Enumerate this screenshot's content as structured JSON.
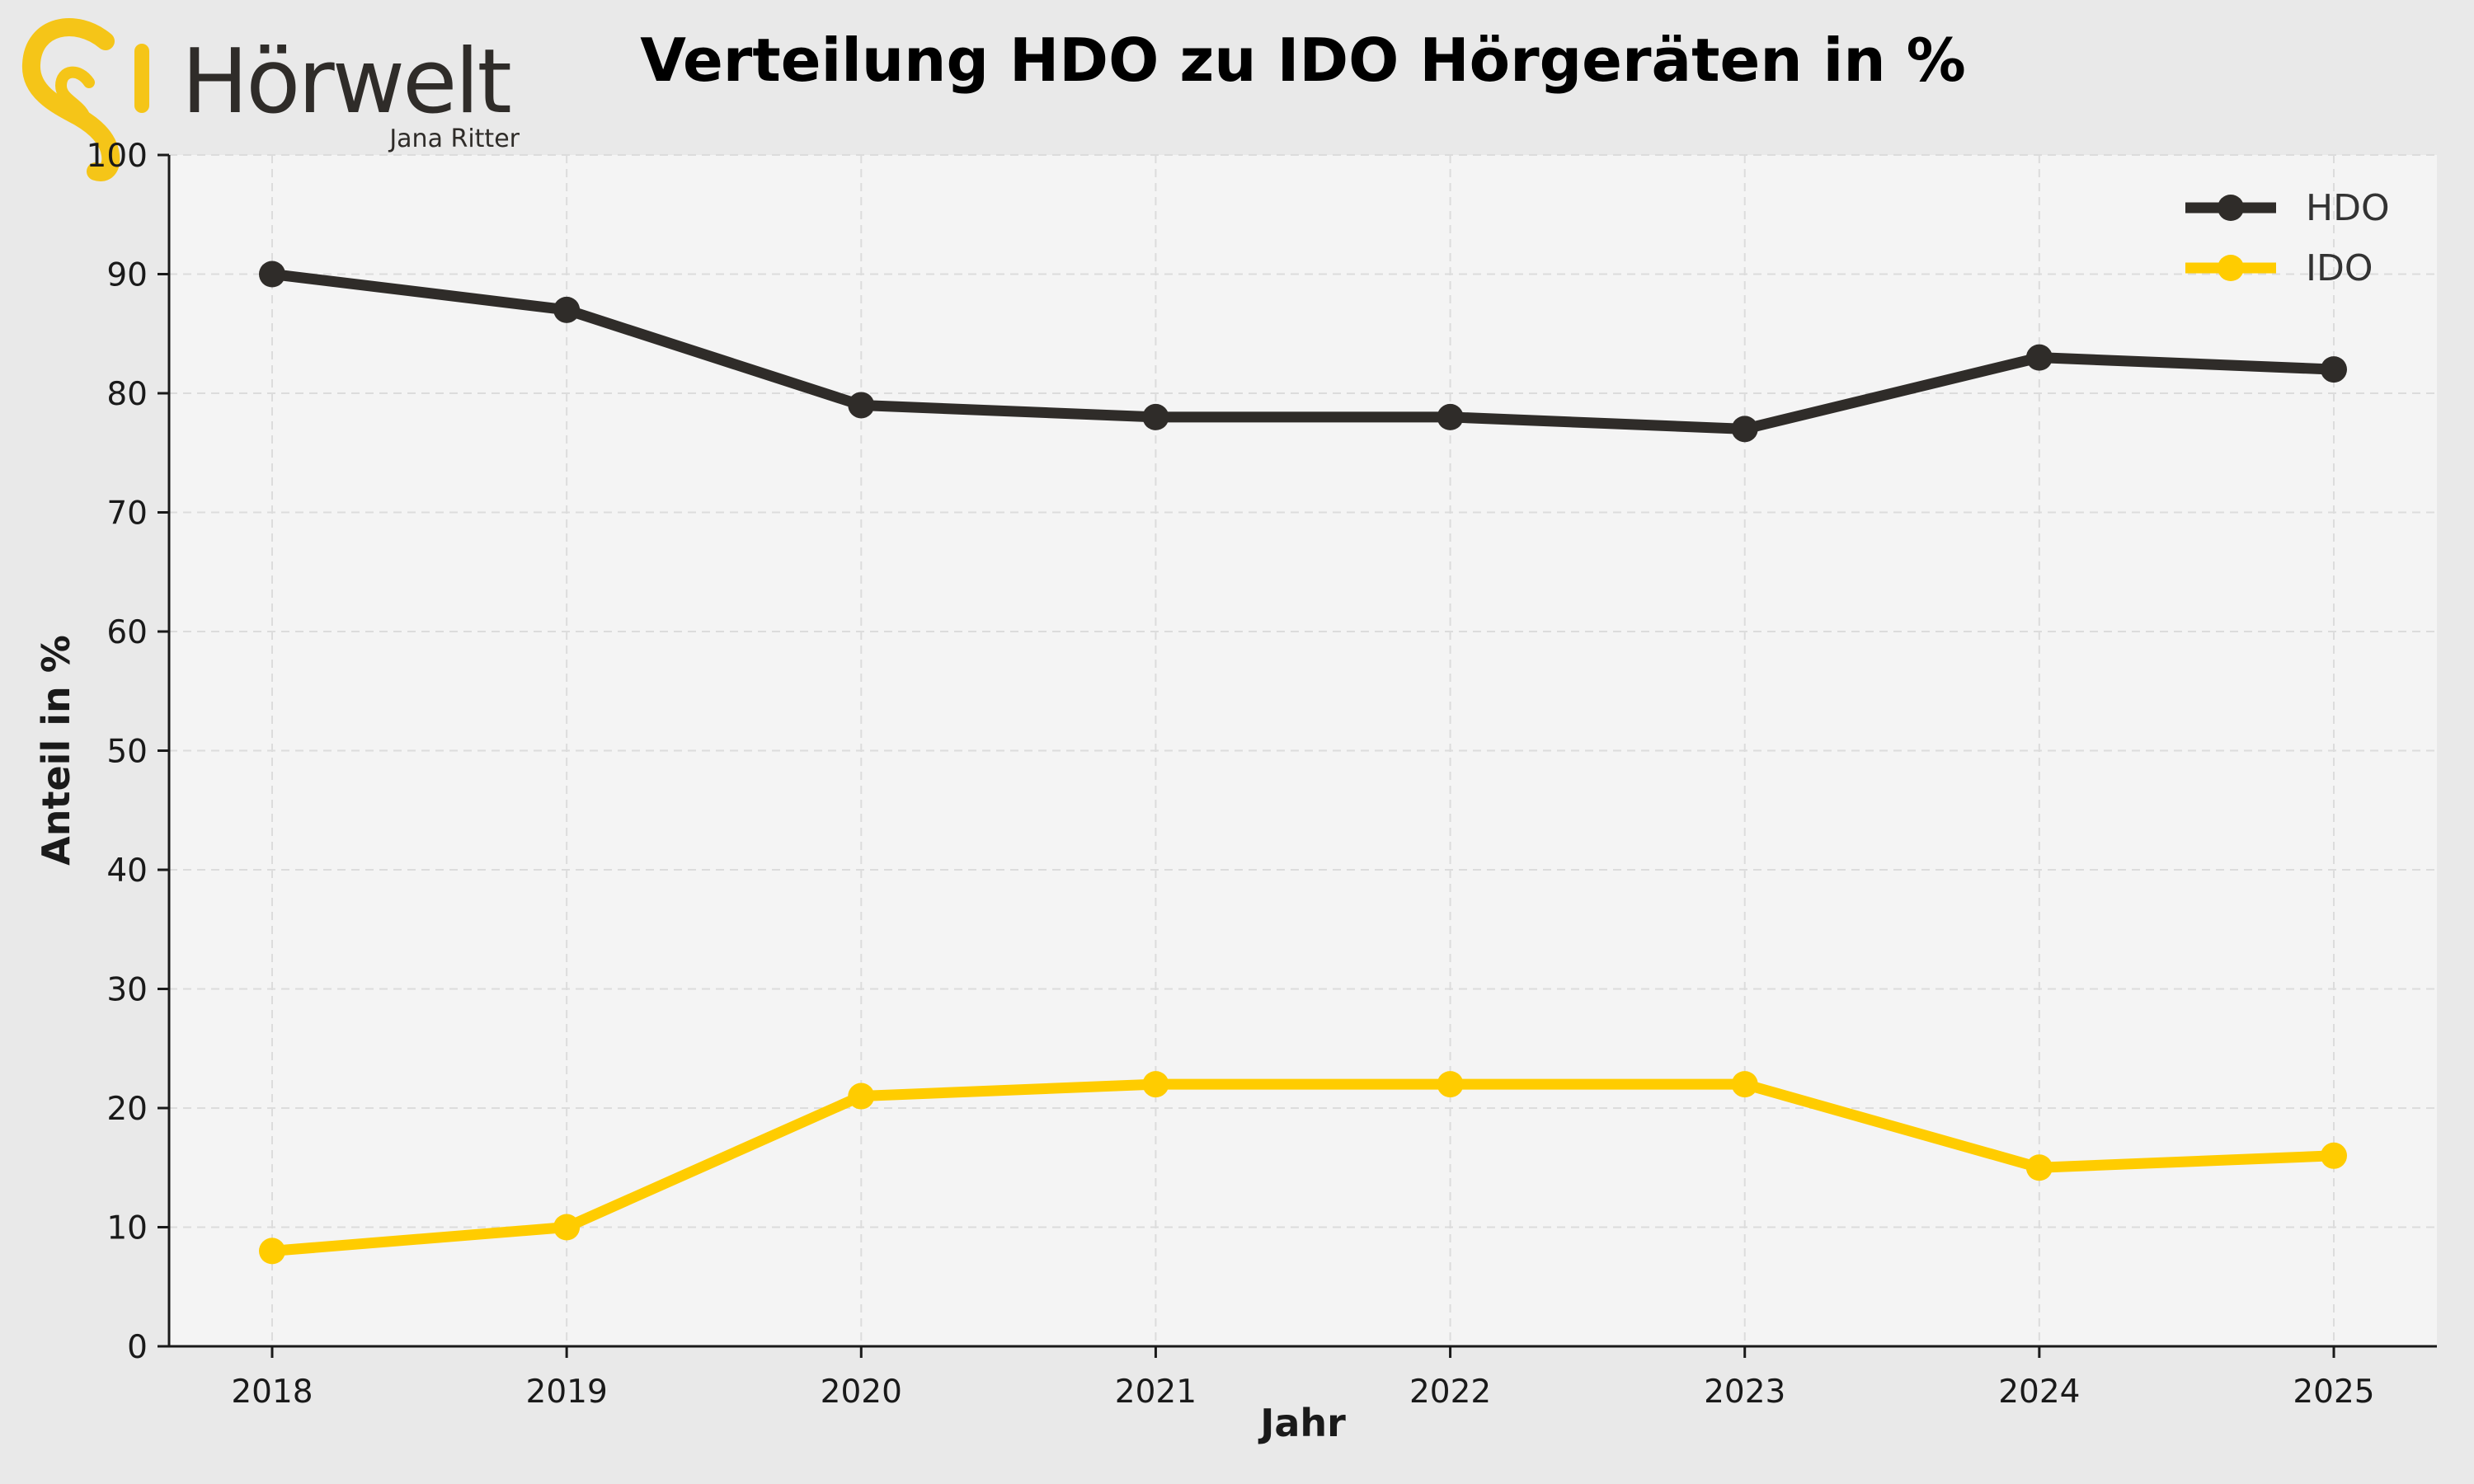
{
  "logo": {
    "brand": "Hörwelt",
    "subtitle": "Jana Ritter",
    "accent_color": "#f5c518",
    "text_color": "#2f2c29",
    "icon": "ear-icon"
  },
  "colors": {
    "page_background": "#e9e9e9",
    "plot_background": "#f4f4f4",
    "grid": "#dcdcdc",
    "axis": "#1a1a1a"
  },
  "chart_data": {
    "type": "line",
    "title": "Verteilung HDO zu IDO Hörgeräten in %",
    "xlabel": "Jahr",
    "ylabel": "Anteil in %",
    "categories": [
      "2018",
      "2019",
      "2020",
      "2021",
      "2022",
      "2023",
      "2024",
      "2025"
    ],
    "ylim": [
      0,
      100
    ],
    "yticks": [
      "0",
      "10",
      "20",
      "30",
      "40",
      "50",
      "60",
      "70",
      "80",
      "90",
      "100"
    ],
    "grid": true,
    "grid_style": "dashed",
    "legend_position": "top-right",
    "series": [
      {
        "name": "HDO",
        "color": "#2f2c29",
        "marker": "circle",
        "values": [
          90,
          87,
          79,
          78,
          78,
          77,
          83,
          82
        ]
      },
      {
        "name": "IDO",
        "color": "#ffcc00",
        "marker": "circle",
        "values": [
          8,
          10,
          21,
          22,
          22,
          22,
          15,
          16
        ]
      }
    ]
  }
}
